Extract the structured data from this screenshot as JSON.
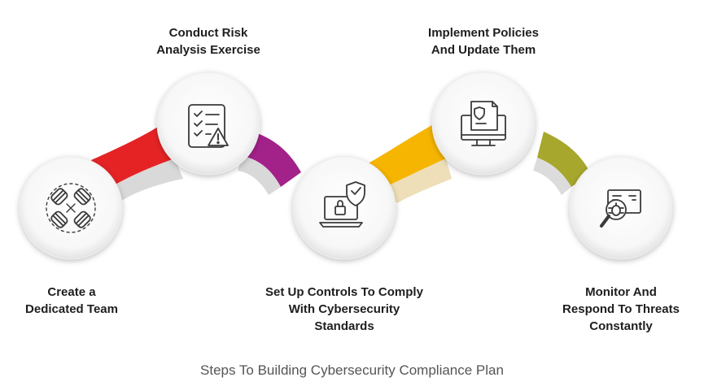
{
  "steps": [
    {
      "id": "team",
      "label_lines": [
        "Create a",
        "Dedicated Team"
      ],
      "icon": "fist-bump-team-icon",
      "color": "#e52325"
    },
    {
      "id": "risk",
      "label_lines": [
        "Conduct Risk",
        "Analysis Exercise"
      ],
      "icon": "checklist-warning-icon",
      "color": "#a3228a"
    },
    {
      "id": "controls",
      "label_lines": [
        "Set Up Controls To Comply",
        "With Cybersecurity",
        "Standards"
      ],
      "icon": "laptop-lock-shield-icon",
      "color": "#f6b500"
    },
    {
      "id": "policies",
      "label_lines": [
        "Implement Policies",
        "And Update Them"
      ],
      "icon": "monitor-document-shield-icon",
      "color": "#a6a72c"
    },
    {
      "id": "monitor",
      "label_lines": [
        "Monitor And",
        "Respond To Threats",
        "Constantly"
      ],
      "icon": "monitor-magnifier-bug-icon",
      "color": "#a6a72c"
    }
  ],
  "caption": "Steps To Building Cybersecurity Compliance Plan"
}
